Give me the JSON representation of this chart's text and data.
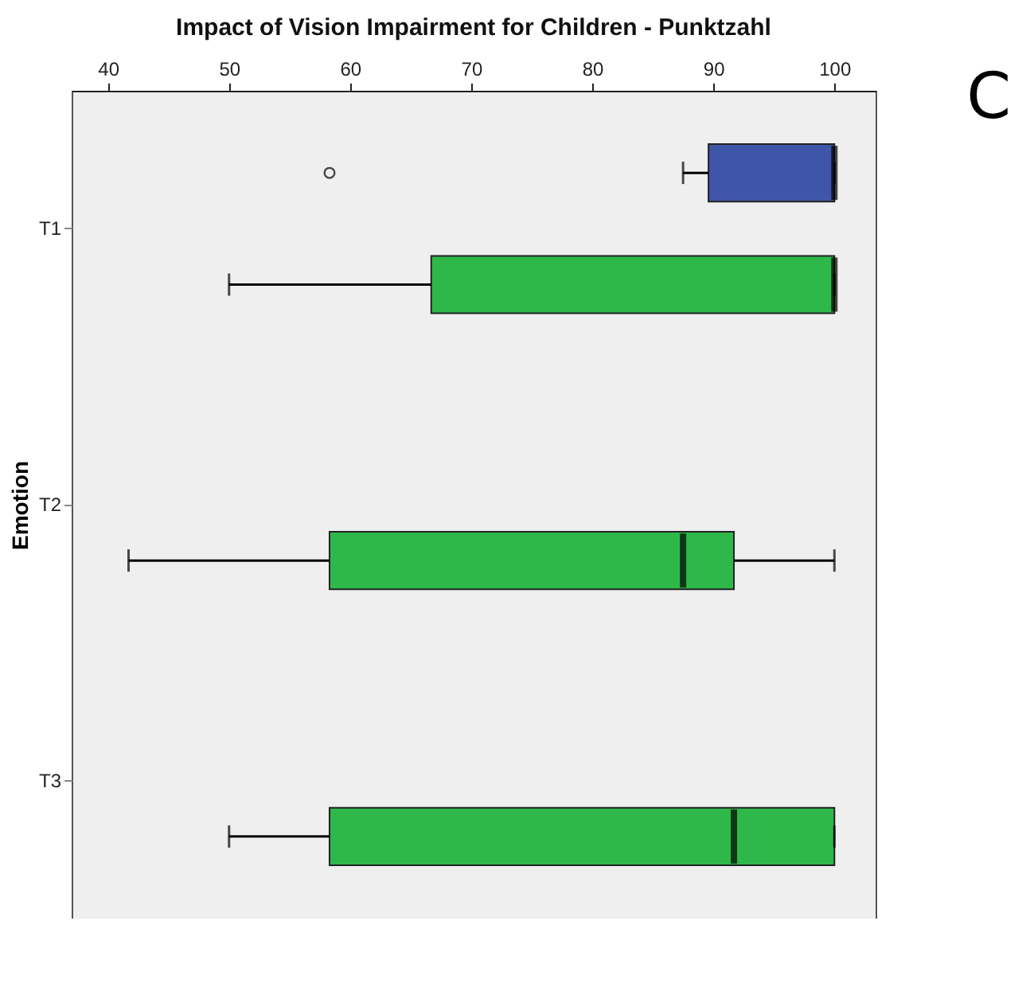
{
  "chart_data": {
    "type": "box",
    "title": "Impact of Vision Impairment for Children - Punktzahl",
    "ylabel": "Emotion",
    "annotations": [
      "C"
    ],
    "orientation": "horizontal",
    "categories": [
      "T1",
      "T2",
      "T3"
    ],
    "xlim": [
      37,
      103.4
    ],
    "xticks": [
      40,
      50,
      60,
      70,
      80,
      90,
      100
    ],
    "series": [
      {
        "color": "#3f56a8",
        "boxes": [
          {
            "low": 87.5,
            "q1": 89.6,
            "median": 100,
            "q3": 100,
            "high": 100,
            "outliers": [
              58.3
            ]
          },
          null,
          null
        ]
      },
      {
        "color": "#2fb84a",
        "boxes": [
          {
            "low": 50,
            "q1": 66.7,
            "median": 100,
            "q3": 100,
            "high": 100
          },
          {
            "low": 41.7,
            "q1": 58.3,
            "median": 87.5,
            "q3": 91.7,
            "high": 100
          },
          {
            "low": 50,
            "q1": 58.3,
            "median": 91.7,
            "q3": 100,
            "high": 100
          }
        ]
      }
    ]
  }
}
